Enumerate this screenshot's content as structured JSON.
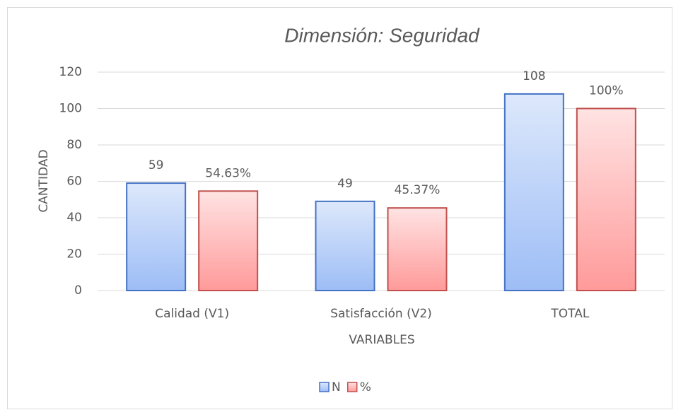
{
  "chart_data": {
    "type": "bar",
    "title": "Dimensión: Seguridad",
    "x_label": "VARIABLES",
    "y_label": "CANTIDAD",
    "categories": [
      "Calidad (V1)",
      "Satisfacción (V2)",
      "TOTAL"
    ],
    "series": [
      {
        "name": "N",
        "color": "#4472c4",
        "values": [
          59,
          49,
          108
        ]
      },
      {
        "name": "%",
        "color": "#c0504d",
        "values": [
          54.63,
          45.37,
          100
        ],
        "value_labels": [
          "54.63%",
          "45.37%",
          "100%"
        ]
      }
    ],
    "ylim": [
      0,
      120
    ],
    "yticks": [
      0,
      20,
      40,
      60,
      80,
      100,
      120
    ],
    "grid": true,
    "legend": "bottom"
  }
}
